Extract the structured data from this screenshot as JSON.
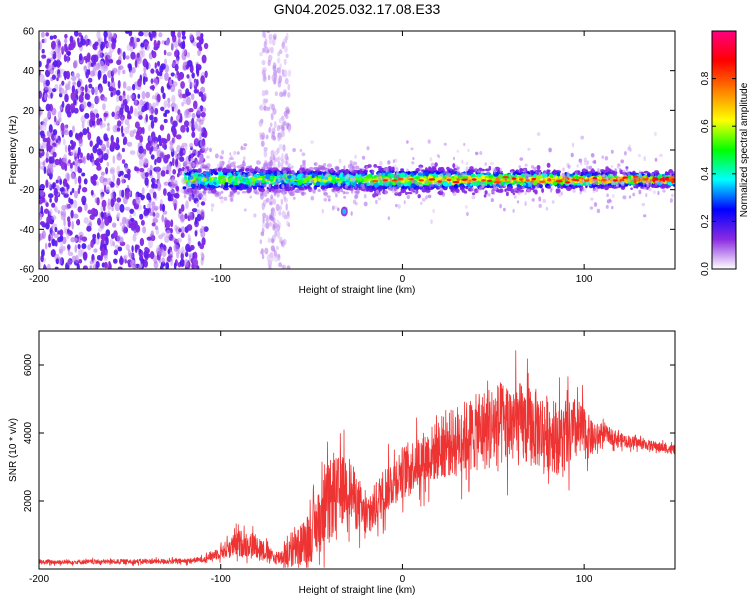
{
  "title": "GN04.2025.032.17.08.E33",
  "chart_data": [
    {
      "type": "heatmap",
      "xlabel": "Height of straight line (km)",
      "ylabel": "Frequency (Hz)",
      "xlim": [
        -200,
        150
      ],
      "ylim": [
        -60,
        60
      ],
      "xticks": [
        -200,
        -100,
        0,
        100
      ],
      "yticks": [
        -60,
        -40,
        -20,
        0,
        20,
        40,
        60
      ],
      "colorbar": {
        "label": "Normalized spectral amplitude",
        "range": [
          0,
          1
        ],
        "ticks": [
          "0.0",
          "0.2",
          "0.4",
          "0.6",
          "0.8"
        ],
        "tick_values": [
          0.0,
          0.2,
          0.4,
          0.6,
          0.8
        ],
        "colors": [
          "#ffffff",
          "#8a2be2",
          "#0000ff",
          "#00ffff",
          "#00ff00",
          "#ffff00",
          "#ff8000",
          "#ff0000",
          "#ff0080"
        ]
      },
      "features": {
        "noise_region_x": [
          -200,
          -108
        ],
        "noise_band_x": [
          -78,
          -62
        ],
        "signal_band": {
          "x": [
            -120,
            150
          ],
          "frequency_hz": -15,
          "peak_amplitude": 0.9
        },
        "isolated_blob": {
          "x": -32,
          "frequency_hz": -31,
          "amplitude": 0.35
        }
      }
    },
    {
      "type": "line",
      "xlabel": "Height of straight line (km)",
      "ylabel": "SNR (10 * v/v)",
      "xlim": [
        -200,
        150
      ],
      "ylim": [
        0,
        7000
      ],
      "xticks": [
        -200,
        -100,
        0,
        100
      ],
      "yticks": [
        2000,
        4000,
        6000
      ],
      "color": "#ee3333",
      "envelope": {
        "x": [
          -200,
          -120,
          -110,
          -100,
          -90,
          -80,
          -70,
          -60,
          -50,
          -40,
          -30,
          -20,
          -10,
          0,
          10,
          20,
          30,
          40,
          50,
          60,
          70,
          80,
          90,
          95,
          100,
          105,
          110,
          120,
          130,
          140,
          150
        ],
        "mean": [
          200,
          230,
          280,
          500,
          750,
          700,
          300,
          500,
          1000,
          2000,
          2500,
          1400,
          2300,
          2900,
          3200,
          3500,
          3800,
          4000,
          4200,
          4300,
          4200,
          4000,
          3800,
          4100,
          4000,
          3800,
          4000,
          3800,
          3700,
          3600,
          3500
        ],
        "spread": [
          80,
          90,
          100,
          250,
          500,
          450,
          200,
          600,
          1000,
          1500,
          1200,
          800,
          900,
          900,
          1000,
          1100,
          1300,
          1400,
          1600,
          1600,
          1500,
          1400,
          1300,
          1200,
          1000,
          600,
          350,
          250,
          200,
          180,
          170
        ]
      }
    }
  ]
}
